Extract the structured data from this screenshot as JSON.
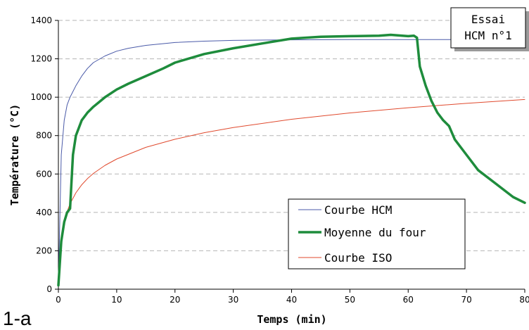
{
  "chart_data": {
    "type": "line",
    "xlabel": "Temps (min)",
    "ylabel": "Température (°C)",
    "xlim": [
      0,
      80
    ],
    "ylim": [
      0,
      1400
    ],
    "x_ticks": [
      0,
      10,
      20,
      30,
      40,
      50,
      60,
      70,
      80
    ],
    "y_ticks": [
      0,
      200,
      400,
      600,
      800,
      1000,
      1200,
      1400
    ],
    "grid": "horizontal dashed",
    "legend_position": "bottom-right",
    "annotation": [
      "Essai",
      "HCM n°1"
    ],
    "panel_label": "1-a",
    "series": [
      {
        "name": "Courbe HCM",
        "color": "#4a5aa8",
        "x": [
          0,
          0.5,
          1,
          1.5,
          2,
          3,
          4,
          5,
          6,
          8,
          10,
          12,
          15,
          20,
          25,
          30,
          40,
          50,
          60,
          70,
          80
        ],
        "y": [
          20,
          700,
          880,
          960,
          1000,
          1060,
          1110,
          1150,
          1180,
          1215,
          1240,
          1255,
          1270,
          1285,
          1292,
          1296,
          1299,
          1300,
          1300,
          1300,
          1300
        ]
      },
      {
        "name": "Moyenne du four",
        "color": "#1e8c3c",
        "x": [
          0,
          0.5,
          1,
          1.5,
          2,
          2.5,
          3,
          4,
          5,
          6,
          7,
          8,
          10,
          12,
          15,
          18,
          20,
          25,
          30,
          35,
          40,
          45,
          50,
          55,
          57,
          60,
          61,
          61.5,
          62,
          63,
          64,
          65,
          66,
          67,
          68,
          70,
          72,
          75,
          78,
          80
        ],
        "y": [
          20,
          250,
          350,
          400,
          420,
          700,
          800,
          880,
          920,
          950,
          975,
          1000,
          1040,
          1070,
          1110,
          1150,
          1180,
          1225,
          1255,
          1280,
          1305,
          1315,
          1318,
          1320,
          1325,
          1318,
          1320,
          1310,
          1160,
          1060,
          980,
          920,
          880,
          850,
          780,
          700,
          620,
          550,
          480,
          450
        ]
      },
      {
        "name": "Courbe ISO",
        "color": "#e04a2e",
        "x": [
          0,
          0.5,
          1,
          1.5,
          2,
          3,
          4,
          5,
          6,
          8,
          10,
          15,
          20,
          25,
          30,
          40,
          50,
          60,
          70,
          80
        ],
        "y": [
          20,
          261,
          349,
          404,
          445,
          502,
          544,
          576,
          603,
          645,
          678,
          739,
          781,
          815,
          842,
          885,
          918,
          945,
          968,
          988
        ]
      }
    ]
  }
}
